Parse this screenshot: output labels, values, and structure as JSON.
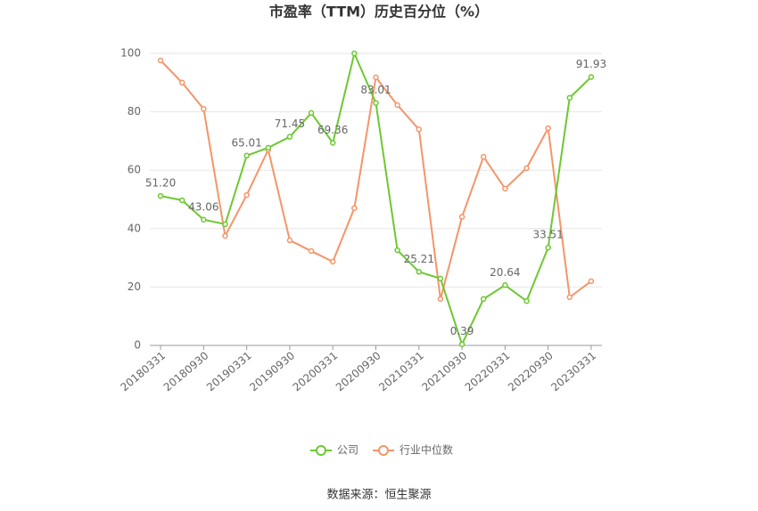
{
  "chart_data": {
    "type": "line",
    "title": "市盈率（TTM）历史百分位（%）",
    "source": "数据来源：恒生聚源",
    "categories": [
      "20180331",
      null,
      "20180930",
      null,
      "20190331",
      null,
      "20190930",
      null,
      "20200331",
      null,
      "20200930",
      null,
      "20210331",
      null,
      "20210930",
      null,
      "20220331",
      null,
      "20220930",
      null,
      "20230331"
    ],
    "series": [
      {
        "name": "公司",
        "color": "#6dc832",
        "values": [
          51.2,
          49.7,
          43.06,
          41.5,
          65.01,
          67.7,
          71.45,
          79.6,
          69.36,
          100,
          83.01,
          32.6,
          25.21,
          22.9,
          0.39,
          15.9,
          20.64,
          15.2,
          33.51,
          84.8,
          91.93
        ],
        "value_labels": [
          "51.20",
          null,
          "43.06",
          null,
          "65.01",
          null,
          "71.45",
          null,
          "69.36",
          null,
          "83.01",
          null,
          "25.21",
          null,
          "0.39",
          null,
          "20.64",
          null,
          "33.51",
          null,
          "91.93"
        ]
      },
      {
        "name": "行业中位数",
        "color": "#f4956a",
        "values": [
          97.6,
          90,
          81,
          37.5,
          51.5,
          67,
          36,
          32.3,
          28.7,
          47,
          91.8,
          82.3,
          74,
          15.9,
          44,
          64.6,
          53.7,
          60.7,
          74.4,
          16.5,
          22
        ]
      }
    ],
    "ylim": [
      0,
      100
    ],
    "yticks": [
      0,
      20,
      40,
      60,
      80,
      100
    ],
    "grid": true,
    "legend": "bottom"
  }
}
